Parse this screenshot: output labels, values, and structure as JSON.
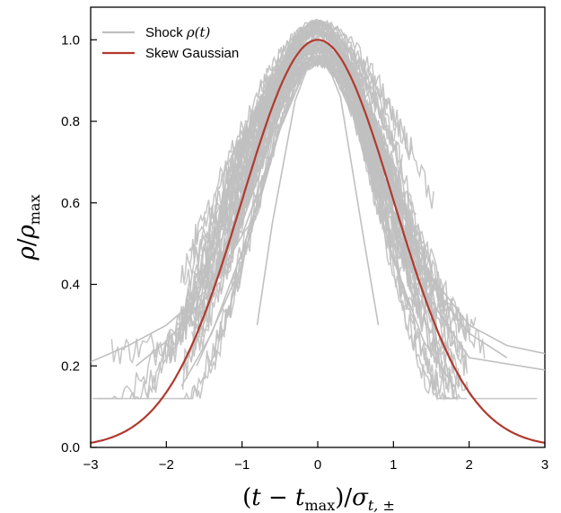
{
  "chart_data": {
    "type": "line",
    "title": "",
    "xlabel_parts": {
      "lparen": "(",
      "t": "t",
      "minus": " − ",
      "t2": "t",
      "sub_max": "max",
      "rparen": ")/",
      "sigma": "σ",
      "sub_sigma": "t, ±"
    },
    "ylabel_parts": {
      "rho": "ρ",
      "slash": "/",
      "rho2": "ρ",
      "sub_max": "max"
    },
    "xlim": [
      -3,
      3
    ],
    "ylim": [
      0.0,
      1.08
    ],
    "x_ticks": [
      -3,
      -2,
      -1,
      0,
      1,
      2,
      3
    ],
    "x_tick_labels": [
      "−3",
      "−2",
      "−1",
      "0",
      "1",
      "2",
      "3"
    ],
    "y_ticks": [
      0.0,
      0.2,
      0.4,
      0.6,
      0.8,
      1.0
    ],
    "y_tick_labels": [
      "0.0",
      "0.2",
      "0.4",
      "0.6",
      "0.8",
      "1.0"
    ],
    "grid": false,
    "legend_position": "top-left",
    "legend": [
      {
        "text_main": "Shock ",
        "text_math": "ρ(t)",
        "color": "#c0c0c0"
      },
      {
        "text_main": "Skew Gaussian",
        "text_math": "",
        "color": "#b03a2e"
      }
    ],
    "series": [
      {
        "name": "Shock ρ(t)",
        "color": "#c0c0c0",
        "description_count": 60,
        "representative_curves": [
          {
            "x": [
              -3.0,
              -2.5,
              -2.0,
              -1.5,
              -1.0,
              -0.5,
              -0.2,
              0.0,
              0.2,
              0.5,
              1.0,
              1.5,
              2.0,
              2.5,
              3.0
            ],
            "y": [
              0.21,
              0.25,
              0.3,
              0.38,
              0.55,
              0.82,
              0.97,
              1.02,
              0.97,
              0.85,
              0.62,
              0.42,
              0.3,
              0.25,
              0.23
            ]
          },
          {
            "x": [
              -2.4,
              -2.0,
              -1.5,
              -1.0,
              -0.5,
              0.0,
              0.5,
              1.0,
              1.5,
              2.0,
              2.5
            ],
            "y": [
              0.2,
              0.26,
              0.36,
              0.52,
              0.78,
              1.0,
              0.82,
              0.58,
              0.4,
              0.28,
              0.22
            ]
          },
          {
            "x": [
              -1.8,
              -1.4,
              -1.0,
              -0.5,
              0.0,
              0.5,
              1.0,
              1.4,
              1.8
            ],
            "y": [
              0.15,
              0.28,
              0.48,
              0.78,
              1.0,
              0.8,
              0.46,
              0.26,
              0.15
            ]
          },
          {
            "x": [
              -0.8,
              -0.6,
              -0.3,
              0.0,
              0.3,
              0.6,
              0.8
            ],
            "y": [
              0.3,
              0.55,
              0.85,
              1.0,
              0.86,
              0.52,
              0.3
            ]
          },
          {
            "x": [
              -1.6,
              -1.0,
              -0.5,
              0.0,
              0.5,
              1.0,
              2.0,
              3.0
            ],
            "y": [
              0.2,
              0.45,
              0.78,
              1.04,
              0.8,
              0.5,
              0.22,
              0.19
            ]
          }
        ]
      },
      {
        "name": "Skew Gaussian",
        "color": "#b03a2e",
        "function": "exp(-x^2/2)",
        "x": [
          -3.0,
          -2.5,
          -2.0,
          -1.5,
          -1.0,
          -0.5,
          0.0,
          0.5,
          1.0,
          1.5,
          2.0,
          2.5,
          3.0
        ],
        "y": [
          0.011,
          0.044,
          0.135,
          0.325,
          0.607,
          0.882,
          1.0,
          0.882,
          0.607,
          0.325,
          0.135,
          0.044,
          0.011
        ]
      }
    ]
  }
}
